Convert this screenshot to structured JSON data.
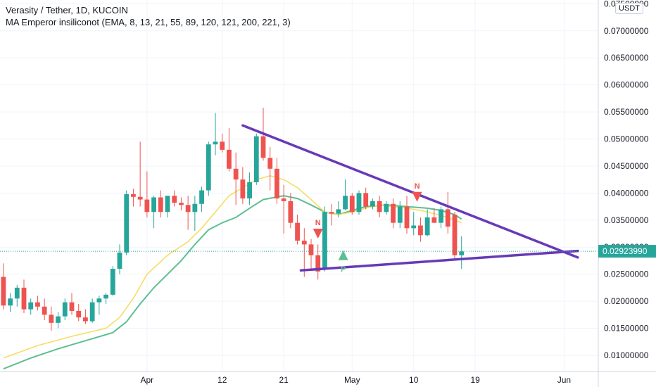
{
  "legend": {
    "symbol_line": "Verasity / Tether, 1D, KUCOIN",
    "indicator_line": "MA Emperor insiliconot (EMA, 8, 13, 21, 55, 89, 120, 121, 200, 221, 3)"
  },
  "currency_badge": "USDT",
  "last_price_label": "0.02923990",
  "colors": {
    "up": "#26a69a",
    "down": "#ef5350",
    "ema_fast": "#f5dd66",
    "ema_slow": "#5dbf92",
    "trendline": "#673ab7",
    "grid": "#f0f3fa",
    "axis_text": "#131722",
    "last_price": "#26a69a"
  },
  "chart_data": {
    "type": "candlestick",
    "y_axis": {
      "range": [
        0.007,
        0.0757
      ],
      "ticks": [
        "0.01000000",
        "0.01500000",
        "0.02000000",
        "0.02500000",
        "0.03000000",
        "0.03500000",
        "0.04000000",
        "0.04500000",
        "0.05000000",
        "0.05500000",
        "0.06000000",
        "0.06500000",
        "0.07000000",
        "0.07500000"
      ],
      "tick_values": [
        0.01,
        0.015,
        0.02,
        0.025,
        0.03,
        0.035,
        0.04,
        0.045,
        0.05,
        0.055,
        0.06,
        0.065,
        0.07,
        0.075
      ]
    },
    "x_axis": {
      "labels": [
        {
          "label": "Apr",
          "index": 21
        },
        {
          "label": "12",
          "index": 32
        },
        {
          "label": "21",
          "index": 41
        },
        {
          "label": "May",
          "index": 51
        },
        {
          "label": "10",
          "index": 60
        },
        {
          "label": "19",
          "index": 69
        },
        {
          "label": "Jun",
          "index": 82
        }
      ],
      "visible_range": [
        -0.5,
        87
      ]
    },
    "candles": [
      [
        0.0245,
        0.027,
        0.0185,
        0.0192
      ],
      [
        0.0192,
        0.0215,
        0.018,
        0.0205
      ],
      [
        0.0205,
        0.023,
        0.019,
        0.0225
      ],
      [
        0.0225,
        0.024,
        0.0178,
        0.0185
      ],
      [
        0.0185,
        0.0205,
        0.0175,
        0.0198
      ],
      [
        0.0198,
        0.021,
        0.0183,
        0.019
      ],
      [
        0.019,
        0.0205,
        0.0165,
        0.0175
      ],
      [
        0.0175,
        0.019,
        0.0145,
        0.016
      ],
      [
        0.016,
        0.018,
        0.015,
        0.0172
      ],
      [
        0.0172,
        0.0205,
        0.0165,
        0.0198
      ],
      [
        0.0198,
        0.0215,
        0.0175,
        0.0182
      ],
      [
        0.0182,
        0.0195,
        0.0163,
        0.017
      ],
      [
        0.017,
        0.0185,
        0.0158,
        0.0163
      ],
      [
        0.0163,
        0.0205,
        0.016,
        0.0198
      ],
      [
        0.0198,
        0.021,
        0.0175,
        0.0205
      ],
      [
        0.0205,
        0.0215,
        0.0195,
        0.0212
      ],
      [
        0.0212,
        0.0265,
        0.021,
        0.026
      ],
      [
        0.026,
        0.0305,
        0.025,
        0.029
      ],
      [
        0.029,
        0.0405,
        0.0285,
        0.0398
      ],
      [
        0.0398,
        0.0408,
        0.0375,
        0.0393
      ],
      [
        0.0393,
        0.0495,
        0.0375,
        0.0388
      ],
      [
        0.0388,
        0.044,
        0.0355,
        0.0365
      ],
      [
        0.0365,
        0.0395,
        0.0335,
        0.0392
      ],
      [
        0.0392,
        0.0405,
        0.0355,
        0.0365
      ],
      [
        0.0365,
        0.0395,
        0.0355,
        0.0395
      ],
      [
        0.0395,
        0.0405,
        0.0375,
        0.0382
      ],
      [
        0.0382,
        0.0392,
        0.0368,
        0.0378
      ],
      [
        0.0378,
        0.0395,
        0.0332,
        0.0365
      ],
      [
        0.0365,
        0.0395,
        0.033,
        0.038
      ],
      [
        0.038,
        0.0412,
        0.0365,
        0.0405
      ],
      [
        0.0405,
        0.0495,
        0.0395,
        0.049
      ],
      [
        0.049,
        0.0548,
        0.047,
        0.0495
      ],
      [
        0.0495,
        0.051,
        0.0475,
        0.048
      ],
      [
        0.048,
        0.052,
        0.044,
        0.0445
      ],
      [
        0.0445,
        0.0475,
        0.0378,
        0.0425
      ],
      [
        0.0425,
        0.0448,
        0.038,
        0.039
      ],
      [
        0.039,
        0.0438,
        0.0378,
        0.042
      ],
      [
        0.042,
        0.051,
        0.0415,
        0.0505
      ],
      [
        0.0505,
        0.0558,
        0.046,
        0.0465
      ],
      [
        0.0465,
        0.0485,
        0.0405,
        0.0445
      ],
      [
        0.0445,
        0.0465,
        0.038,
        0.039
      ],
      [
        0.039,
        0.0415,
        0.0325,
        0.0385
      ],
      [
        0.0385,
        0.04,
        0.0335,
        0.0345
      ],
      [
        0.0345,
        0.036,
        0.0305,
        0.0312
      ],
      [
        0.0312,
        0.0335,
        0.0245,
        0.0305
      ],
      [
        0.0305,
        0.0315,
        0.026,
        0.0285
      ],
      [
        0.0285,
        0.0305,
        0.024,
        0.0255
      ],
      [
        0.026,
        0.0375,
        0.0255,
        0.0365
      ],
      [
        0.0365,
        0.038,
        0.034,
        0.0362
      ],
      [
        0.0362,
        0.0385,
        0.0355,
        0.037
      ],
      [
        0.037,
        0.0425,
        0.0368,
        0.0395
      ],
      [
        0.0395,
        0.04,
        0.036,
        0.0365
      ],
      [
        0.0365,
        0.0405,
        0.036,
        0.04
      ],
      [
        0.04,
        0.041,
        0.037,
        0.0375
      ],
      [
        0.0375,
        0.039,
        0.037,
        0.0385
      ],
      [
        0.0385,
        0.0395,
        0.0355,
        0.0365
      ],
      [
        0.0365,
        0.0385,
        0.036,
        0.038
      ],
      [
        0.038,
        0.039,
        0.0335,
        0.0345
      ],
      [
        0.0345,
        0.0385,
        0.0335,
        0.0375
      ],
      [
        0.0375,
        0.0395,
        0.0325,
        0.0335
      ],
      [
        0.0335,
        0.0365,
        0.0322,
        0.034
      ],
      [
        0.034,
        0.0355,
        0.031,
        0.0322
      ],
      [
        0.0322,
        0.037,
        0.032,
        0.0355
      ],
      [
        0.0355,
        0.0372,
        0.0345,
        0.0345
      ],
      [
        0.0345,
        0.0375,
        0.0335,
        0.037
      ],
      [
        0.037,
        0.0402,
        0.0325,
        0.0338
      ],
      [
        0.036,
        0.0365,
        0.0275,
        0.0285
      ],
      [
        0.0285,
        0.032,
        0.026,
        0.0292
      ]
    ],
    "ema_fast": [
      [
        0,
        0.0095
      ],
      [
        5,
        0.0118
      ],
      [
        10,
        0.0135
      ],
      [
        15,
        0.015
      ],
      [
        17,
        0.017
      ],
      [
        19,
        0.0205
      ],
      [
        21,
        0.025
      ],
      [
        24,
        0.0285
      ],
      [
        27,
        0.031
      ],
      [
        29,
        0.0335
      ],
      [
        31,
        0.0365
      ],
      [
        33,
        0.0395
      ],
      [
        35,
        0.041
      ],
      [
        37,
        0.0425
      ],
      [
        39,
        0.0432
      ],
      [
        41,
        0.0425
      ],
      [
        43,
        0.041
      ],
      [
        45,
        0.0388
      ],
      [
        47,
        0.0365
      ],
      [
        49,
        0.036
      ],
      [
        51,
        0.0365
      ],
      [
        53,
        0.0372
      ],
      [
        55,
        0.0378
      ],
      [
        57,
        0.0375
      ],
      [
        59,
        0.0372
      ],
      [
        61,
        0.0368
      ],
      [
        63,
        0.0362
      ],
      [
        65,
        0.0355
      ],
      [
        67,
        0.0345
      ]
    ],
    "ema_slow": [
      [
        0,
        0.0075
      ],
      [
        4,
        0.0095
      ],
      [
        8,
        0.0112
      ],
      [
        12,
        0.0127
      ],
      [
        16,
        0.0142
      ],
      [
        18,
        0.0162
      ],
      [
        20,
        0.0195
      ],
      [
        22,
        0.0225
      ],
      [
        24,
        0.025
      ],
      [
        26,
        0.0275
      ],
      [
        28,
        0.0305
      ],
      [
        30,
        0.0332
      ],
      [
        32,
        0.0345
      ],
      [
        34,
        0.0355
      ],
      [
        36,
        0.0372
      ],
      [
        38,
        0.0388
      ],
      [
        41,
        0.0395
      ],
      [
        43,
        0.039
      ],
      [
        45,
        0.0378
      ],
      [
        47,
        0.0365
      ],
      [
        49,
        0.036
      ],
      [
        51,
        0.0368
      ],
      [
        53,
        0.0375
      ],
      [
        56,
        0.0378
      ],
      [
        59,
        0.0375
      ],
      [
        62,
        0.0372
      ],
      [
        64,
        0.0368
      ],
      [
        66,
        0.036
      ],
      [
        67,
        0.0352
      ]
    ],
    "trendlines": [
      {
        "from": [
          35,
          0.0525
        ],
        "to": [
          84,
          0.0281
        ]
      },
      {
        "from": [
          43.5,
          0.0257
        ],
        "to": [
          84,
          0.0293
        ]
      }
    ],
    "markers": [
      {
        "type": "triangle-down",
        "label": "N",
        "index": 46,
        "price": 0.0325,
        "color": "#ef5350"
      },
      {
        "type": "triangle-up",
        "label": "P",
        "index": 49.7,
        "price": 0.0285,
        "color": "#5dbf92"
      },
      {
        "type": "triangle-down",
        "label": "N",
        "index": 60.5,
        "price": 0.0393,
        "color": "#ef5350"
      }
    ],
    "last_price": 0.0292399
  }
}
